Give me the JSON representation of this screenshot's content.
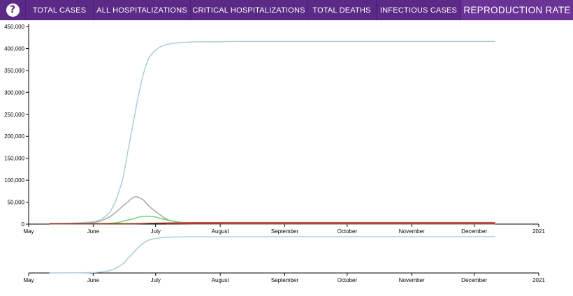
{
  "nav": {
    "help_label": "?",
    "tabs": [
      {
        "label": "TOTAL CASES",
        "active": false
      },
      {
        "label": "ALL HOSPITALIZATIONS",
        "active": false
      },
      {
        "label": "CRITICAL HOSPITALIZATIONS",
        "active": false
      },
      {
        "label": "TOTAL DEATHS",
        "active": false
      },
      {
        "label": "INFECTIOUS CASES",
        "active": false
      },
      {
        "label": "REPRODUCTION RATE",
        "active": true
      }
    ]
  },
  "colors": {
    "nav_bg": "#5b2a86",
    "total_cases": "#a9cfdc",
    "infectious": "#a8a8a8",
    "hospitalizations": "#6bd86b",
    "deaths": "#d04040",
    "critical": "#8b3a2a"
  },
  "chart_data": {
    "type": "line",
    "ylim": [
      0,
      450000
    ],
    "yticks": [
      "0",
      "50,000",
      "100,000",
      "150,000",
      "200,000",
      "250,000",
      "300,000",
      "350,000",
      "400,000",
      "450,000"
    ],
    "xticks": [
      "May",
      "June",
      "July",
      "August",
      "September",
      "October",
      "November",
      "December",
      "2021"
    ],
    "xdomain_days": [
      0,
      245
    ],
    "series": [
      {
        "name": "total_cases",
        "color_key": "total_cases",
        "x": [
          10,
          20,
          30,
          35,
          40,
          45,
          48,
          50,
          52,
          55,
          58,
          62,
          65,
          70,
          75,
          80,
          90,
          100,
          120,
          150,
          200,
          224
        ],
        "y": [
          1000,
          2000,
          5000,
          12000,
          35000,
          100000,
          175000,
          225000,
          275000,
          340000,
          380000,
          400000,
          407000,
          412000,
          414000,
          415000,
          415500,
          416000,
          416000,
          416000,
          416000,
          416000
        ]
      },
      {
        "name": "infectious",
        "color_key": "infectious",
        "x": [
          10,
          20,
          30,
          35,
          40,
          45,
          48,
          50,
          52,
          55,
          58,
          62,
          66,
          70,
          75,
          80,
          85,
          224
        ],
        "y": [
          500,
          1000,
          3000,
          8000,
          20000,
          40000,
          52000,
          60000,
          62000,
          55000,
          40000,
          25000,
          12000,
          6000,
          3000,
          1500,
          800,
          500
        ]
      },
      {
        "name": "hospitalizations",
        "color_key": "hospitalizations",
        "x": [
          10,
          30,
          40,
          45,
          50,
          54,
          56,
          60,
          64,
          70,
          75,
          80,
          90,
          224
        ],
        "y": [
          0,
          500,
          2000,
          6000,
          12000,
          17000,
          18000,
          17000,
          12000,
          6000,
          3000,
          1500,
          500,
          0
        ]
      },
      {
        "name": "deaths",
        "color_key": "deaths",
        "x": [
          10,
          40,
          50,
          55,
          60,
          70,
          80,
          90,
          120,
          224
        ],
        "y": [
          0,
          100,
          500,
          1200,
          2000,
          3000,
          3500,
          3700,
          3800,
          3800
        ]
      },
      {
        "name": "critical",
        "color_key": "critical",
        "x": [
          10,
          40,
          50,
          55,
          60,
          70,
          80,
          224
        ],
        "y": [
          0,
          200,
          800,
          1500,
          2000,
          1200,
          500,
          200
        ]
      }
    ],
    "overview": {
      "series_name": "total_cases",
      "ylim": [
        0,
        416000
      ]
    }
  }
}
